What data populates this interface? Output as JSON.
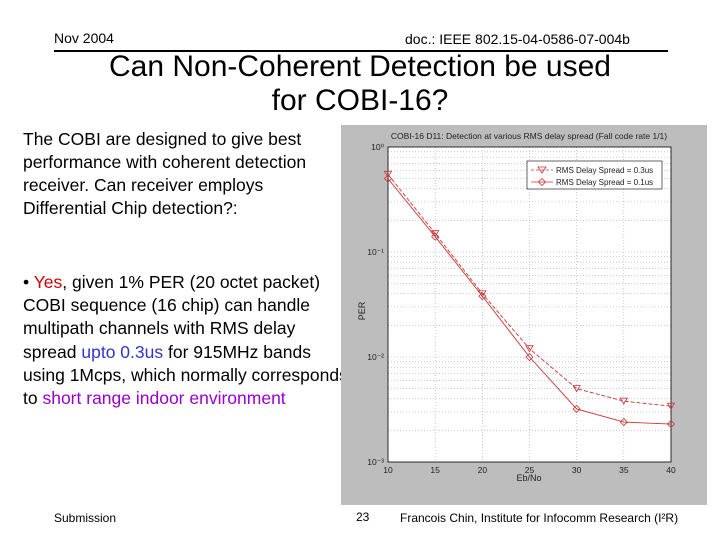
{
  "header": {
    "date": "Nov 2004",
    "doc": "doc.: IEEE 802.15-04-0586-07-004b"
  },
  "title": {
    "line1": "Can Non-Coherent Detection be used",
    "line2": "for COBI-16?"
  },
  "body": {
    "para1": "The COBI are designed to give best performance with coherent detection receiver.  Can receiver employs Differential Chip detection?:",
    "bullet": "•",
    "yes": "Yes",
    "p2a": ", given 1% PER (20 octet packet) COBI sequence (16 chip) can handle multipath channels with RMS delay spread ",
    "upto": "upto 0.3us",
    "p2b": " for 915MHz bands using 1Mcps, which normally corresponds to ",
    "short_range": "short range indoor environment"
  },
  "footer": {
    "left": "Submission",
    "page": "23",
    "right": "Francois Chin, Institute for Infocomm Research (I²R)"
  },
  "chart_data": {
    "type": "line",
    "title": "COBI-16 D11: Detection at various RMS delay spread (Fall code rate 1/1)",
    "xlabel": "Eb/No",
    "ylabel": "PER",
    "xlim": [
      10,
      40
    ],
    "ylim": [
      0.001,
      1
    ],
    "yscale": "log",
    "xticks": [
      "10",
      "15",
      "20",
      "25",
      "30",
      "35",
      "40"
    ],
    "yticks": [
      "10⁰",
      "10⁻¹",
      "10⁻²",
      "10⁻³"
    ],
    "grid": true,
    "legend_position": "top-right",
    "series": [
      {
        "name": "RMS Delay Spread = 0.3us",
        "marker": "triangle-down",
        "color": "#cc3333",
        "x": [
          10,
          15,
          20,
          25,
          30,
          35,
          40
        ],
        "y": [
          0.55,
          0.15,
          0.04,
          0.012,
          0.005,
          0.0038,
          0.0034
        ]
      },
      {
        "name": "RMS Delay Spread = 0.1us",
        "marker": "diamond",
        "color": "#cc3333",
        "x": [
          10,
          15,
          20,
          25,
          30,
          35,
          40
        ],
        "y": [
          0.5,
          0.14,
          0.038,
          0.01,
          0.0032,
          0.0024,
          0.0023
        ]
      }
    ]
  }
}
